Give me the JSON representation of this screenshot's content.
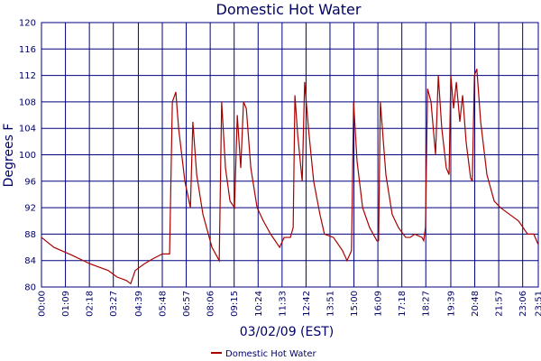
{
  "chart_data": {
    "type": "line",
    "title": "Domestic Hot Water",
    "xlabel": "03/02/09 (EST)",
    "ylabel": "Degrees F",
    "x": [
      0,
      36,
      88,
      140,
      192,
      218,
      244,
      257,
      270,
      296,
      322,
      348,
      369,
      377,
      387,
      395,
      413,
      429,
      436,
      447,
      465,
      491,
      512,
      519,
      530,
      543,
      556,
      564,
      574,
      582,
      590,
      603,
      621,
      639,
      660,
      686,
      699,
      717,
      725,
      730,
      738,
      751,
      758,
      769,
      784,
      802,
      815,
      841,
      867,
      880,
      893,
      899,
      909,
      925,
      945,
      966,
      971,
      976,
      992,
      1010,
      1028,
      1049,
      1062,
      1075,
      1096,
      1101,
      1106,
      1112,
      1122,
      1135,
      1143,
      1153,
      1166,
      1174,
      1179,
      1187,
      1195,
      1205,
      1213,
      1223,
      1236,
      1241,
      1247,
      1254,
      1265,
      1283,
      1304,
      1322,
      1348,
      1374,
      1400,
      1418,
      1430
    ],
    "series": [
      {
        "name": "Domestic Hot Water",
        "color": "#aa0000",
        "values": [
          87.5,
          86,
          84.8,
          83.5,
          82.5,
          81.5,
          81,
          80.5,
          82.5,
          83.5,
          84.3,
          85,
          85,
          108,
          109.5,
          104,
          96,
          92,
          105,
          97,
          91,
          86,
          84,
          108,
          98,
          93,
          92,
          106,
          98,
          108,
          107,
          98,
          92,
          90,
          88,
          86,
          87.5,
          87.5,
          89,
          109,
          103,
          96,
          111,
          104,
          96,
          91,
          88,
          87.5,
          85.5,
          84,
          85.5,
          108,
          99,
          92,
          89,
          87,
          87,
          108,
          97,
          91,
          89,
          87.5,
          87.5,
          88,
          87.5,
          87,
          89,
          110,
          108,
          100,
          112,
          104,
          98,
          97,
          112,
          107,
          111,
          105,
          109,
          102,
          96.5,
          96,
          112,
          113,
          105,
          97,
          93,
          92,
          91,
          90,
          88,
          88,
          86.5
        ]
      }
    ],
    "xlim": [
      0,
      1431
    ],
    "xticks": [
      {
        "value": 0,
        "label": "00:00"
      },
      {
        "value": 69,
        "label": "01:09"
      },
      {
        "value": 138,
        "label": "02:18"
      },
      {
        "value": 207,
        "label": "03:27"
      },
      {
        "value": 279,
        "label": "04:39"
      },
      {
        "value": 348,
        "label": "05:48"
      },
      {
        "value": 417,
        "label": "06:57"
      },
      {
        "value": 486,
        "label": "08:06"
      },
      {
        "value": 555,
        "label": "09:15"
      },
      {
        "value": 624,
        "label": "10:24"
      },
      {
        "value": 693,
        "label": "11:33"
      },
      {
        "value": 762,
        "label": "12:42"
      },
      {
        "value": 831,
        "label": "13:51"
      },
      {
        "value": 900,
        "label": "15:00"
      },
      {
        "value": 969,
        "label": "16:09"
      },
      {
        "value": 1038,
        "label": "17:18"
      },
      {
        "value": 1107,
        "label": "18:27"
      },
      {
        "value": 1179,
        "label": "19:39"
      },
      {
        "value": 1248,
        "label": "20:48"
      },
      {
        "value": 1317,
        "label": "21:57"
      },
      {
        "value": 1386,
        "label": "23:06"
      },
      {
        "value": 1431,
        "label": "23:51"
      }
    ],
    "ylim": [
      80,
      120
    ],
    "yticks": [
      80,
      84,
      88,
      92,
      96,
      100,
      104,
      108,
      112,
      116,
      120
    ],
    "grid": true
  }
}
